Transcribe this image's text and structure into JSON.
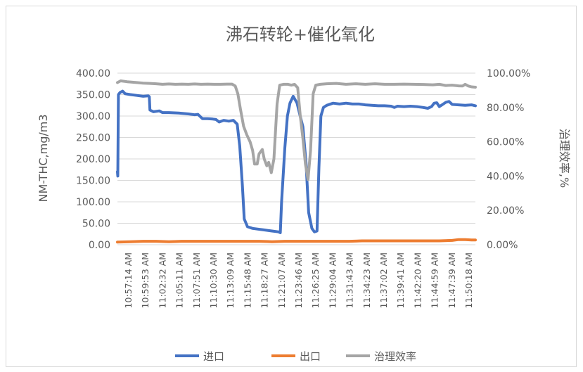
{
  "chart_data": {
    "type": "line",
    "title": "沸石转轮+催化氧化",
    "ylabel": "NM-THC,mg/m3",
    "y2label": "治理效率,%",
    "ylim": [
      0,
      400
    ],
    "y2lim": [
      0,
      1
    ],
    "yticks": [
      "0.00",
      "50.00",
      "100.00",
      "150.00",
      "200.00",
      "250.00",
      "300.00",
      "350.00",
      "400.00"
    ],
    "y2ticks": [
      "0.00%",
      "20.00%",
      "40.00%",
      "60.00%",
      "80.00%",
      "100.00%"
    ],
    "grid": true,
    "legend_position": "bottom",
    "x_tick_labels": [
      "10:57:14 AM",
      "10:59:53 AM",
      "11:02:32 AM",
      "11:05:11 AM",
      "11:07:51 AM",
      "11:10:30 AM",
      "11:13:09 AM",
      "11:15:48 AM",
      "11:18:27 AM",
      "11:21:07 AM",
      "11:23:46 AM",
      "11:26:25 AM",
      "11:29:04 AM",
      "11:31:43 AM",
      "11:34:23 AM",
      "11:37:02 AM",
      "11:39:41 AM",
      "11:42:20 AM",
      "11:44:59 AM",
      "11:47:39 AM",
      "11:50:18 AM"
    ],
    "x_range_minutes": [
      0,
      55.6
    ],
    "series": [
      {
        "name": "进口",
        "axis": "left",
        "color": "#4472c4",
        "points": [
          [
            0,
            170
          ],
          [
            0.05,
            160
          ],
          [
            0.15,
            350
          ],
          [
            0.4,
            355
          ],
          [
            0.8,
            358
          ],
          [
            1.2,
            352
          ],
          [
            2.0,
            350
          ],
          [
            3.0,
            348
          ],
          [
            4.0,
            346
          ],
          [
            4.8,
            347
          ],
          [
            4.95,
            345
          ],
          [
            5.05,
            314
          ],
          [
            5.6,
            310
          ],
          [
            6.5,
            312
          ],
          [
            7.0,
            308
          ],
          [
            8.0,
            308
          ],
          [
            9.5,
            307
          ],
          [
            11.0,
            305
          ],
          [
            12.0,
            303
          ],
          [
            12.5,
            304
          ],
          [
            13.2,
            294
          ],
          [
            14.0,
            294
          ],
          [
            14.8,
            293
          ],
          [
            15.3,
            292
          ],
          [
            15.8,
            286
          ],
          [
            16.5,
            290
          ],
          [
            17.3,
            288
          ],
          [
            18.0,
            290
          ],
          [
            18.6,
            281
          ],
          [
            19.0,
            230
          ],
          [
            19.4,
            140
          ],
          [
            19.7,
            60
          ],
          [
            20.2,
            42
          ],
          [
            21.0,
            38
          ],
          [
            22.5,
            35
          ],
          [
            24.0,
            32
          ],
          [
            25.0,
            30
          ],
          [
            25.3,
            28
          ],
          [
            25.5,
            100
          ],
          [
            26.0,
            225
          ],
          [
            26.4,
            300
          ],
          [
            26.8,
            330
          ],
          [
            27.3,
            346
          ],
          [
            27.9,
            330
          ],
          [
            28.3,
            305
          ],
          [
            28.8,
            275
          ],
          [
            29.3,
            190
          ],
          [
            29.7,
            75
          ],
          [
            30.2,
            38
          ],
          [
            30.6,
            30
          ],
          [
            31.0,
            32
          ],
          [
            31.3,
            180
          ],
          [
            31.6,
            300
          ],
          [
            32.0,
            320
          ],
          [
            32.5,
            325
          ],
          [
            33.5,
            330
          ],
          [
            34.5,
            328
          ],
          [
            35.5,
            330
          ],
          [
            36.5,
            328
          ],
          [
            37.5,
            328
          ],
          [
            38.5,
            326
          ],
          [
            39.5,
            325
          ],
          [
            40.5,
            324
          ],
          [
            41.5,
            324
          ],
          [
            42.5,
            323
          ],
          [
            43.0,
            320
          ],
          [
            43.5,
            323
          ],
          [
            44.5,
            322
          ],
          [
            45.5,
            323
          ],
          [
            46.5,
            322
          ],
          [
            47.5,
            320
          ],
          [
            48.2,
            318
          ],
          [
            48.8,
            322
          ],
          [
            49.2,
            330
          ],
          [
            49.6,
            331
          ],
          [
            50.0,
            322
          ],
          [
            50.3,
            325
          ],
          [
            51.0,
            332
          ],
          [
            51.5,
            334
          ],
          [
            52.0,
            327
          ],
          [
            53.0,
            326
          ],
          [
            54.0,
            325
          ],
          [
            55.0,
            326
          ],
          [
            55.6,
            324
          ]
        ]
      },
      {
        "name": "出口",
        "axis": "left",
        "color": "#ed7d31",
        "points": [
          [
            0,
            6
          ],
          [
            2,
            7
          ],
          [
            4,
            8
          ],
          [
            6,
            8
          ],
          [
            8,
            7
          ],
          [
            10,
            8
          ],
          [
            12,
            8
          ],
          [
            14,
            8
          ],
          [
            16,
            8
          ],
          [
            18,
            8
          ],
          [
            20,
            8
          ],
          [
            22,
            8
          ],
          [
            24,
            7
          ],
          [
            26,
            8
          ],
          [
            28,
            8
          ],
          [
            30,
            8
          ],
          [
            32,
            8
          ],
          [
            34,
            8
          ],
          [
            36,
            8
          ],
          [
            38,
            9
          ],
          [
            40,
            9
          ],
          [
            42,
            9
          ],
          [
            44,
            9
          ],
          [
            46,
            9
          ],
          [
            48,
            9
          ],
          [
            50,
            9
          ],
          [
            52,
            10
          ],
          [
            53,
            12
          ],
          [
            54,
            12
          ],
          [
            55,
            11
          ],
          [
            55.6,
            11
          ]
        ]
      },
      {
        "name": "治理效率",
        "axis": "right",
        "color": "#a5a5a5",
        "points": [
          [
            0,
            0.945
          ],
          [
            0.5,
            0.955
          ],
          [
            1.5,
            0.95
          ],
          [
            3.0,
            0.945
          ],
          [
            4.0,
            0.942
          ],
          [
            5.0,
            0.94
          ],
          [
            6.0,
            0.938
          ],
          [
            7.0,
            0.935
          ],
          [
            8.0,
            0.937
          ],
          [
            9.0,
            0.935
          ],
          [
            10.0,
            0.936
          ],
          [
            11.0,
            0.935
          ],
          [
            12.0,
            0.937
          ],
          [
            13.0,
            0.935
          ],
          [
            14.0,
            0.936
          ],
          [
            15.0,
            0.935
          ],
          [
            16.0,
            0.935
          ],
          [
            17.0,
            0.936
          ],
          [
            17.8,
            0.936
          ],
          [
            18.3,
            0.925
          ],
          [
            18.7,
            0.88
          ],
          [
            19.1,
            0.79
          ],
          [
            19.6,
            0.69
          ],
          [
            20.1,
            0.64
          ],
          [
            20.6,
            0.6
          ],
          [
            21.0,
            0.55
          ],
          [
            21.3,
            0.47
          ],
          [
            21.7,
            0.47
          ],
          [
            22.0,
            0.53
          ],
          [
            22.5,
            0.555
          ],
          [
            22.8,
            0.5
          ],
          [
            23.2,
            0.46
          ],
          [
            23.5,
            0.48
          ],
          [
            23.9,
            0.42
          ],
          [
            24.3,
            0.5
          ],
          [
            24.8,
            0.82
          ],
          [
            25.2,
            0.93
          ],
          [
            25.8,
            0.935
          ],
          [
            26.5,
            0.935
          ],
          [
            27.0,
            0.93
          ],
          [
            27.5,
            0.935
          ],
          [
            28.0,
            0.915
          ],
          [
            28.4,
            0.75
          ],
          [
            28.8,
            0.62
          ],
          [
            29.2,
            0.47
          ],
          [
            29.6,
            0.38
          ],
          [
            30.0,
            0.55
          ],
          [
            30.4,
            0.88
          ],
          [
            30.8,
            0.93
          ],
          [
            31.5,
            0.935
          ],
          [
            32.5,
            0.938
          ],
          [
            34.0,
            0.94
          ],
          [
            35.5,
            0.935
          ],
          [
            37.0,
            0.938
          ],
          [
            38.5,
            0.935
          ],
          [
            40.0,
            0.938
          ],
          [
            41.5,
            0.935
          ],
          [
            43.0,
            0.935
          ],
          [
            44.5,
            0.936
          ],
          [
            46.0,
            0.935
          ],
          [
            47.5,
            0.934
          ],
          [
            49.0,
            0.932
          ],
          [
            50.0,
            0.935
          ],
          [
            51.0,
            0.928
          ],
          [
            52.0,
            0.93
          ],
          [
            53.0,
            0.926
          ],
          [
            53.6,
            0.925
          ],
          [
            54.0,
            0.935
          ],
          [
            54.5,
            0.925
          ],
          [
            55.0,
            0.92
          ],
          [
            55.6,
            0.918
          ]
        ]
      }
    ]
  }
}
